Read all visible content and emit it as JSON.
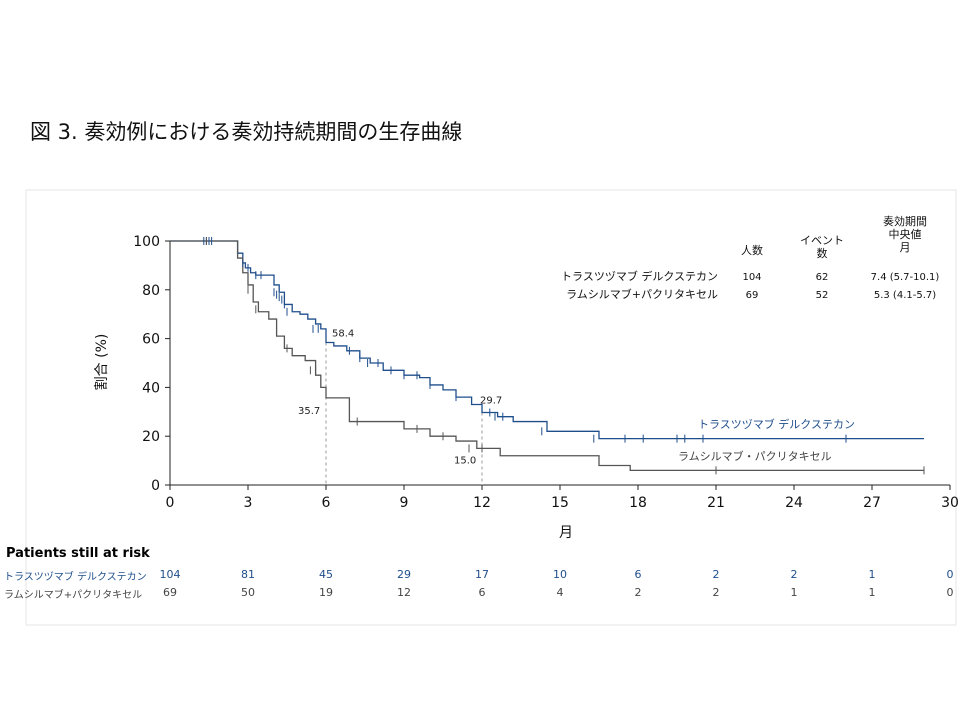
{
  "title": "図 3.  奏効例における奏効持続期間の生存曲線",
  "chart_data": {
    "type": "line",
    "subtype": "kaplan-meier",
    "xlabel": "月",
    "ylabel": "割合 (%)",
    "xlim": [
      0,
      30
    ],
    "ylim": [
      0,
      100
    ],
    "xticks": [
      0,
      3,
      6,
      9,
      12,
      15,
      18,
      21,
      24,
      27,
      30
    ],
    "yticks": [
      0,
      20,
      40,
      60,
      80,
      100
    ],
    "grid": false,
    "series": [
      {
        "name": "トラスツヅマブ デルクステカン",
        "color": "#1f4e8c",
        "x": [
          0,
          2.6,
          2.8,
          2.9,
          3.1,
          3.3,
          3.6,
          4.0,
          4.2,
          4.4,
          4.7,
          5.0,
          5.3,
          5.6,
          5.8,
          6.0,
          6.3,
          6.8,
          7.3,
          7.7,
          8.2,
          9.0,
          9.6,
          10.0,
          10.5,
          11.0,
          11.6,
          12.0,
          12.6,
          13.2,
          14.5,
          16.5,
          29.0
        ],
        "y": [
          100,
          95,
          91,
          89,
          87,
          86,
          86,
          82,
          79,
          74,
          71,
          70,
          68,
          66,
          64,
          58.4,
          57,
          55,
          52,
          50,
          47,
          45,
          44,
          41,
          39,
          36,
          33,
          29.7,
          28,
          26,
          22,
          19,
          19
        ]
      },
      {
        "name": "ラムシルマブ・パクリタキセル",
        "color": "#555555",
        "x": [
          0,
          2.6,
          2.8,
          3.0,
          3.2,
          3.4,
          3.8,
          4.1,
          4.4,
          4.7,
          5.2,
          5.6,
          5.8,
          6.0,
          6.9,
          7.5,
          9.0,
          10.0,
          11.0,
          11.8,
          12.7,
          16.5,
          17.7,
          29.0
        ],
        "y": [
          100,
          93,
          87,
          82,
          75,
          71,
          68,
          61,
          56,
          53,
          51,
          45,
          40,
          35.7,
          26,
          26,
          23,
          20,
          18,
          15.0,
          12,
          8,
          6,
          6
        ]
      }
    ],
    "censor_marks": [
      {
        "x": [
          1.3,
          1.4,
          1.5,
          1.6,
          2.8,
          3.0,
          3.3,
          3.5,
          4.0,
          4.1,
          4.2,
          4.3,
          4.4,
          4.5,
          5.5,
          5.7,
          6.9,
          7.3,
          7.6,
          8.0,
          8.5,
          9.0,
          9.5,
          10.0,
          11.0,
          12.3,
          12.5,
          12.8,
          14.3,
          16.3,
          17.5,
          18.2,
          19.5,
          19.8,
          20.5,
          26.0
        ],
        "y": [
          100,
          100,
          100,
          100,
          91,
          89,
          86,
          86,
          79,
          78,
          77,
          76,
          74,
          71,
          64,
          64,
          55,
          52,
          50,
          50,
          47,
          45,
          45,
          41,
          36,
          29.7,
          28,
          28,
          22,
          19,
          19,
          19,
          19,
          19,
          19,
          19
        ]
      },
      {
        "x": [
          1.4,
          3.0,
          3.3,
          4.5,
          5.4,
          5.6,
          7.2,
          9.5,
          10.5,
          11.5,
          12.0,
          21.0,
          29.0
        ],
        "y": [
          100,
          80,
          72,
          56,
          47,
          47,
          26,
          23,
          20,
          15,
          15,
          6,
          6
        ]
      }
    ],
    "legend": {
      "headers": [
        "人数",
        "イベント\n数",
        "奏効期間\n中央値\n月"
      ],
      "rows": [
        {
          "name": "トラスツヅマブ デルクステカン",
          "n": "104",
          "events": "62",
          "median": "7.4 (5.7-10.1)"
        },
        {
          "name": "ラムシルマブ+パクリタキセル",
          "n": "69",
          "events": "52",
          "median": "5.3 (4.1-5.7)"
        }
      ]
    },
    "annotations": [
      {
        "text": "58.4",
        "x": 6.0,
        "y": 58.4
      },
      {
        "text": "35.7",
        "x": 6.0,
        "y": 35.7
      },
      {
        "text": "29.7",
        "x": 12.0,
        "y": 29.7
      },
      {
        "text": "15.0",
        "x": 12.0,
        "y": 15.0
      }
    ],
    "curve_labels": [
      "トラスツヅマブ デルクステカン",
      "ラムシルマブ・パクリタキセル"
    ],
    "risk_table": {
      "title": "Patients still at risk",
      "times": [
        0,
        3,
        6,
        9,
        12,
        15,
        18,
        21,
        24,
        27,
        30
      ],
      "rows": [
        {
          "label": "トラスツヅマブ  デルクステカン",
          "color": "#1f4e8c",
          "values": [
            "104",
            "81",
            "45",
            "29",
            "17",
            "10",
            "6",
            "2",
            "2",
            "1",
            "0"
          ]
        },
        {
          "label": "ラムシルマブ+パクリタキセル",
          "color": "#444444",
          "values": [
            "69",
            "50",
            "19",
            "12",
            "6",
            "4",
            "2",
            "2",
            "1",
            "1",
            "0"
          ]
        }
      ]
    }
  }
}
